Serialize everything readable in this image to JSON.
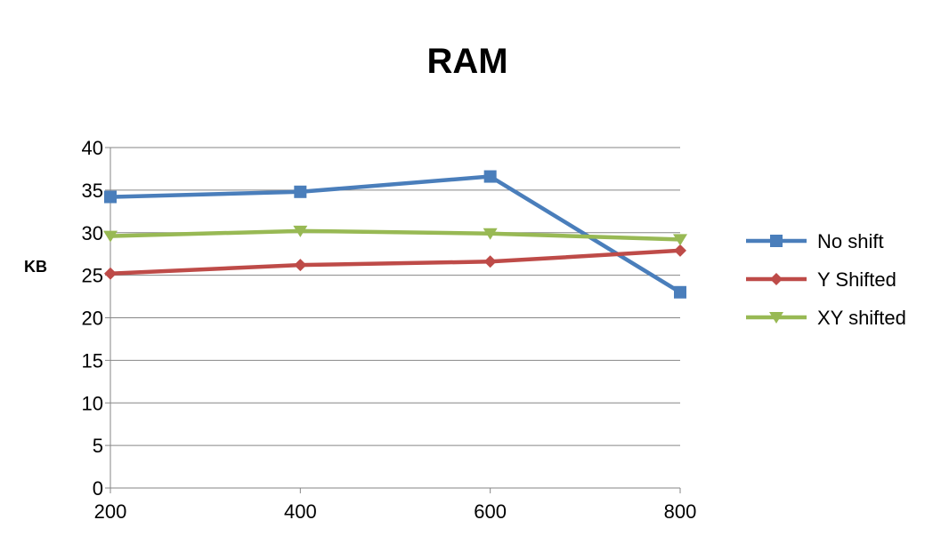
{
  "chart_data": {
    "type": "line",
    "title": "RAM",
    "xlabel": "",
    "ylabel": "KB",
    "x": [
      200,
      400,
      600,
      800
    ],
    "x_tick_labels": [
      "200",
      "400",
      "600",
      "800"
    ],
    "ylim": [
      0,
      40
    ],
    "y_ticks": [
      0,
      5,
      10,
      15,
      20,
      25,
      30,
      35,
      40
    ],
    "y_tick_labels": [
      "0",
      "5",
      "10",
      "15",
      "20",
      "25",
      "30",
      "35",
      "40"
    ],
    "grid": "horizontal",
    "legend_position": "right",
    "series": [
      {
        "name": "No shift",
        "values": [
          34.2,
          34.8,
          36.6,
          23.0
        ],
        "color": "#4a7ebb",
        "marker": "square"
      },
      {
        "name": "Y Shifted",
        "values": [
          25.2,
          26.2,
          26.6,
          27.9
        ],
        "color": "#be4b48",
        "marker": "diamond"
      },
      {
        "name": "XY shifted",
        "values": [
          29.6,
          30.2,
          29.9,
          29.2
        ],
        "color": "#98b954",
        "marker": "triangle-down"
      }
    ]
  }
}
